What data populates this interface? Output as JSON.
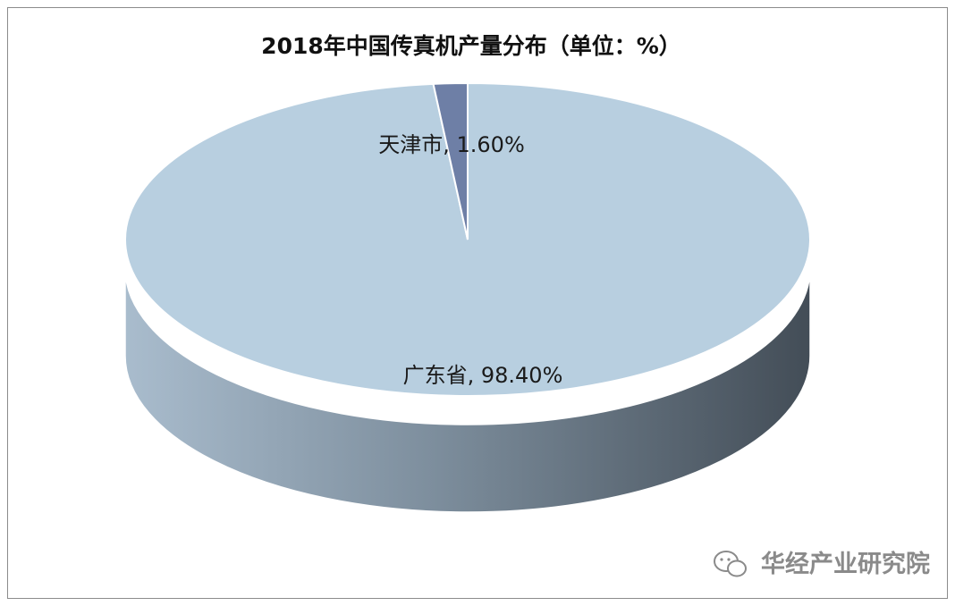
{
  "chart_data": {
    "type": "pie",
    "style": "3d",
    "title": "2018年中国传真机产量分布（单位：%）",
    "slices": [
      {
        "label": "广东省",
        "value": 98.4,
        "display": "广东省, 98.40%",
        "color": "#b8cfe0"
      },
      {
        "label": "天津市",
        "value": 1.6,
        "display": "天津市, 1.60%",
        "color": "#6e7fa6"
      }
    ],
    "legend": "none"
  },
  "watermark": {
    "text": "华经产业研究院",
    "icon": "wechat-icon"
  }
}
